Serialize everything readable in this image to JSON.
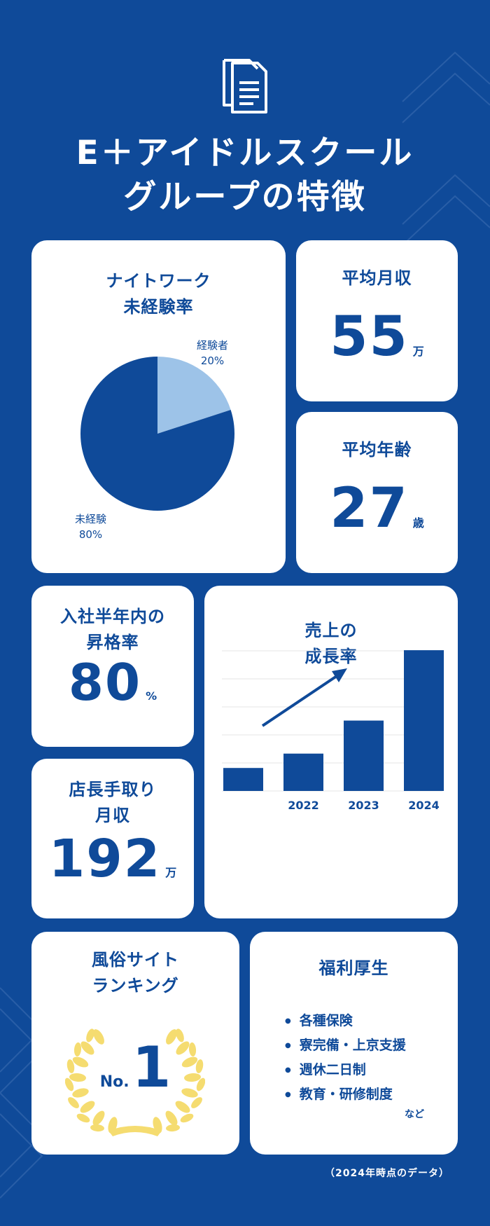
{
  "page": {
    "title_line1": "E＋アイドルスクール",
    "title_line2": "グループの特徴",
    "icon": "document-icon"
  },
  "nightwork": {
    "title_line1": "ナイトワーク",
    "title_line2": "未経験率",
    "chart_data": {
      "type": "pie",
      "slices": [
        {
          "label": "経験者",
          "value": 20,
          "display": "20%",
          "color": "#9dc3e8"
        },
        {
          "label": "未経験",
          "value": 80,
          "display": "80%",
          "color": "#0f4a99"
        }
      ]
    }
  },
  "salary": {
    "title": "平均月収",
    "value": "55",
    "unit": "万"
  },
  "age": {
    "title": "平均年齢",
    "value": "27",
    "unit": "歳"
  },
  "promotion": {
    "title_line1": "入社半年内の",
    "title_line2": "昇格率",
    "value": "80",
    "unit": "%"
  },
  "sales": {
    "title_line1": "売上の",
    "title_line2": "成長率",
    "chart_data": {
      "type": "bar",
      "categories": [
        "",
        "2022",
        "2023",
        "2024"
      ],
      "values": [
        1.6,
        2.6,
        4.9,
        9.8
      ],
      "trend": "up-arrow"
    }
  },
  "manager": {
    "title_line1": "店長手取り",
    "title_line2": "月収",
    "value": "192",
    "unit": "万"
  },
  "ranking": {
    "title_line1": "風俗サイト",
    "title_line2": "ランキング",
    "rank_prefix": "No.",
    "rank": "1",
    "icon": "laurel-wreath-icon"
  },
  "welfare": {
    "title": "福利厚生",
    "items": [
      "各種保険",
      "寮完備・上京支援",
      "週休二日制",
      "教育・研修制度"
    ],
    "suffix": "など"
  },
  "footnote": "（2024年時点のデータ）",
  "colors": {
    "background": "#0f4a99",
    "accent_light": "#9dc3e8",
    "gold": "#f5dc70",
    "card": "#ffffff"
  }
}
